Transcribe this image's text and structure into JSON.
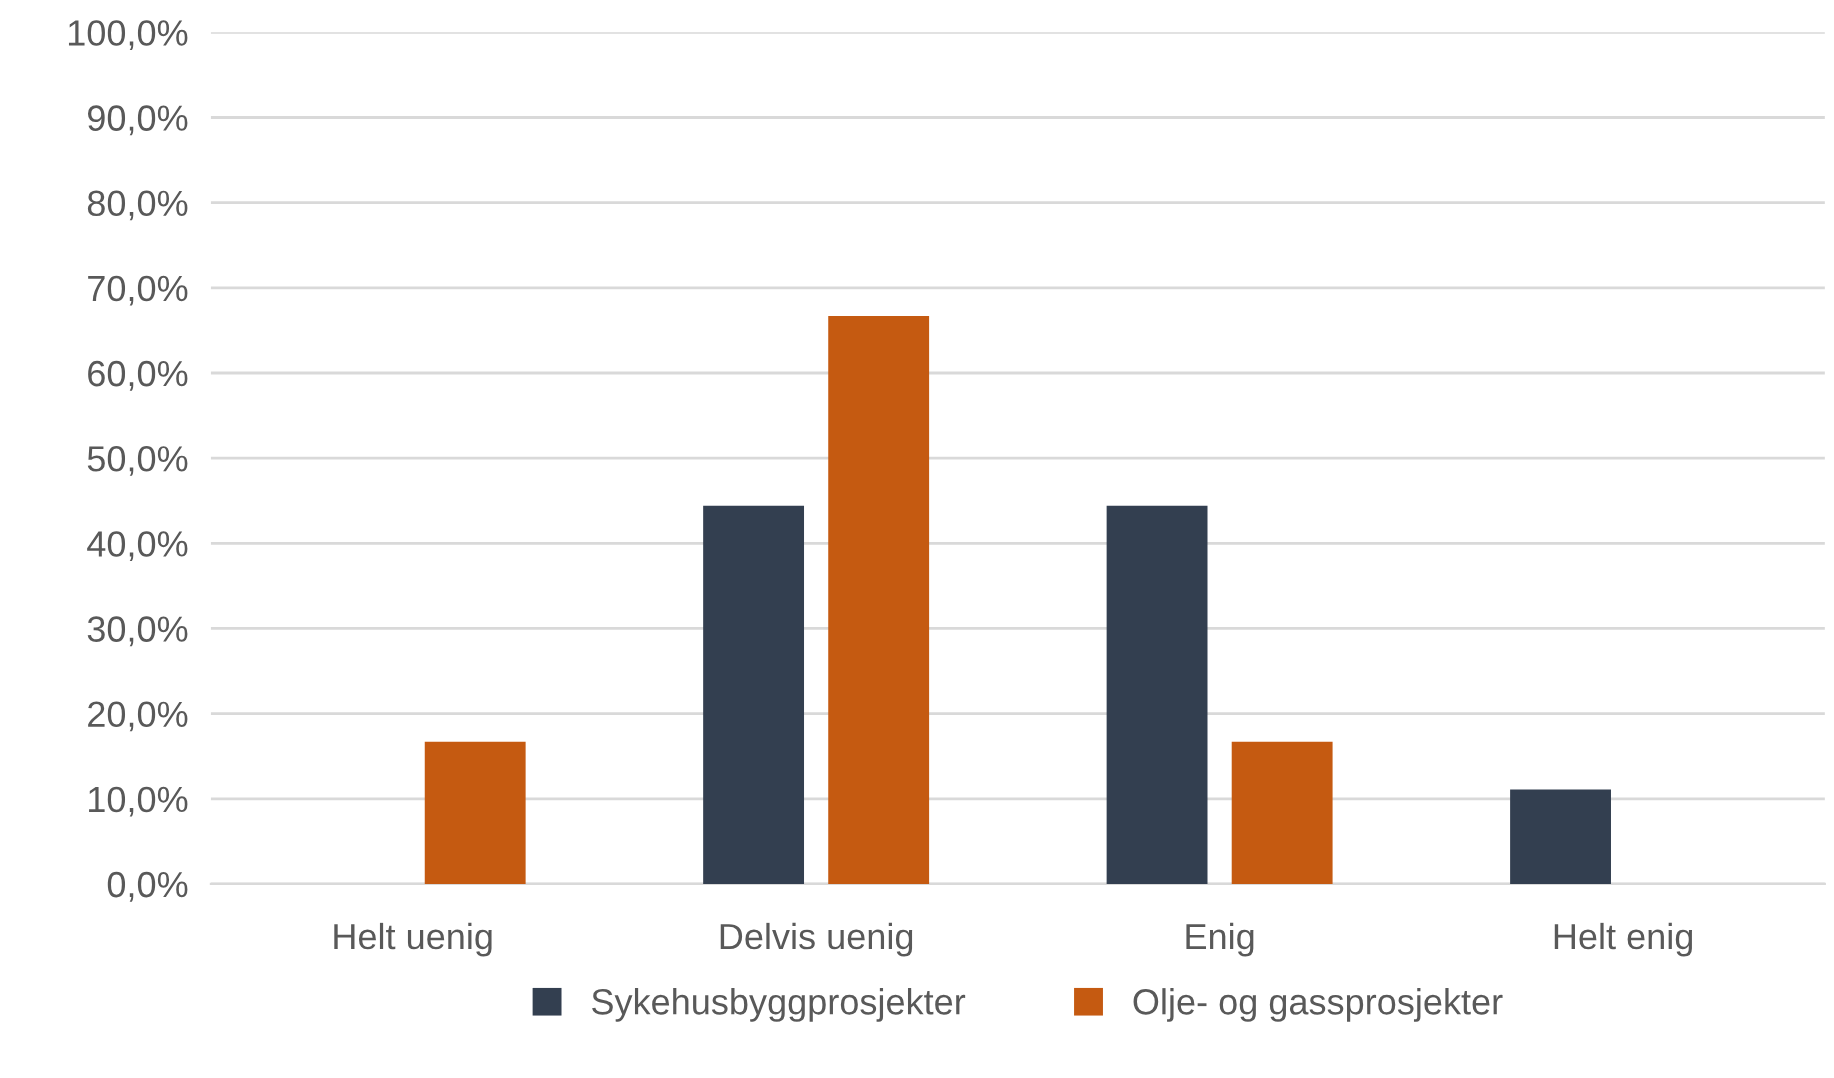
{
  "chart_data": {
    "type": "bar",
    "categories": [
      "Helt uenig",
      "Delvis uenig",
      "Enig",
      "Helt enig"
    ],
    "series": [
      {
        "name": "Sykehusbyggprosjekter",
        "color": "#333f50",
        "values": [
          0,
          44.4,
          44.4,
          11.1
        ]
      },
      {
        "name": "Olje- og gassprosjekter",
        "color": "#c55a11",
        "values": [
          16.7,
          66.7,
          16.7,
          0
        ]
      }
    ],
    "ylim": [
      0,
      100
    ],
    "yticks": [
      {
        "value": 0,
        "label": "0,0%"
      },
      {
        "value": 10,
        "label": "10,0%"
      },
      {
        "value": 20,
        "label": "20,0%"
      },
      {
        "value": 30,
        "label": "30,0%"
      },
      {
        "value": 40,
        "label": "40,0%"
      },
      {
        "value": 50,
        "label": "50,0%"
      },
      {
        "value": 60,
        "label": "60,0%"
      },
      {
        "value": 70,
        "label": "70,0%"
      },
      {
        "value": 80,
        "label": "80,0%"
      },
      {
        "value": 90,
        "label": "90,0%"
      },
      {
        "value": 100,
        "label": "100,0%"
      }
    ],
    "grid": "y",
    "legend": "bottom"
  }
}
